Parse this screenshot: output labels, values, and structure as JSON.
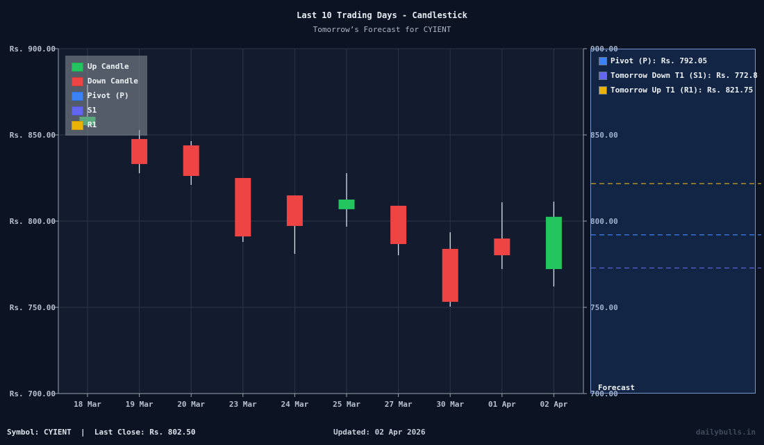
{
  "header": {
    "title": "Last 10 Trading Days - Candlestick",
    "subtitle": "Tomorrow’s Forecast for CYIENT"
  },
  "legend": {
    "items": [
      {
        "label": "Up Candle",
        "color": "#22c55e"
      },
      {
        "label": "Down Candle",
        "color": "#ef4444"
      },
      {
        "label": "Pivot (P)",
        "color": "#3b82f6"
      },
      {
        "label": "S1",
        "color": "#6366f1"
      },
      {
        "label": "R1",
        "color": "#eab308"
      }
    ]
  },
  "forecast_panel": {
    "items": [
      {
        "label": "Pivot (P): Rs. 792.05",
        "color": "#3b82f6"
      },
      {
        "label": "Tomorrow Down T1 (S1): Rs. 772.8",
        "color": "#6366f1"
      },
      {
        "label": "Tomorrow Up T1 (R1): Rs. 821.75",
        "color": "#eab308"
      }
    ],
    "label": "Forecast"
  },
  "footer": {
    "left": "Symbol: CYIENT  |  Last Close: Rs. 802.50",
    "middle": "Updated: 02 Apr 2026",
    "right": "dailybulls.in"
  },
  "colors": {
    "up": "#22c55e",
    "down": "#ef4444",
    "pivot": "#3b82f6",
    "s1": "#6366f1",
    "r1": "#eab308",
    "plot_bg": "#131b2e",
    "grid": "#2c3646",
    "axis": "#9aa3b2"
  },
  "chart_data": {
    "type": "candlestick",
    "title": "Last 10 Trading Days - Candlestick",
    "subtitle": "Tomorrow’s Forecast for CYIENT",
    "xlabel": "",
    "ylabel": "",
    "ylim": [
      700,
      900
    ],
    "yticks": [
      700,
      750,
      800,
      850,
      900
    ],
    "ytick_labels_left": [
      "Rs. 700.00",
      "Rs. 750.00",
      "Rs. 800.00",
      "Rs. 850.00",
      "Rs. 900.00"
    ],
    "ytick_labels_right": [
      "700.00",
      "750.00",
      "800.00",
      "850.00",
      "900.00"
    ],
    "grid": true,
    "legend_position": "upper left",
    "categories": [
      "18 Mar",
      "19 Mar",
      "20 Mar",
      "23 Mar",
      "24 Mar",
      "25 Mar",
      "27 Mar",
      "30 Mar",
      "01 Apr",
      "02 Apr"
    ],
    "open": [
      855.6,
      847.6,
      843.9,
      825.0,
      814.9,
      806.9,
      808.9,
      783.9,
      789.9,
      772.2
    ],
    "high": [
      879.0,
      852.8,
      846.4,
      825.0,
      814.9,
      827.8,
      808.9,
      793.5,
      810.9,
      811.3
    ],
    "low": [
      855.2,
      827.8,
      821.0,
      787.9,
      781.0,
      796.8,
      780.2,
      750.4,
      772.2,
      762.1
    ],
    "close": [
      860.5,
      833.1,
      826.2,
      791.1,
      797.2,
      812.5,
      786.7,
      753.2,
      780.2,
      802.5
    ],
    "forecast": {
      "pivot": 792.05,
      "s1": 772.8,
      "r1": 821.75
    }
  }
}
